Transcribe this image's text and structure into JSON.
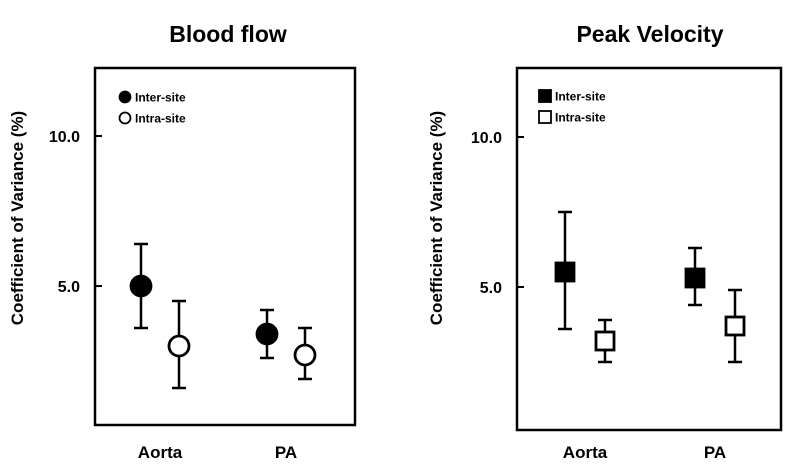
{
  "chart_data": [
    {
      "type": "scatter",
      "title": "Blood flow",
      "ylabel": "Coefficient of Variance (%)",
      "xlabel": "",
      "categories": [
        "Aorta",
        "PA"
      ],
      "yticks": [
        "5.0",
        "10.0"
      ],
      "ylim": [
        0,
        12.5
      ],
      "marker": "circle",
      "legend_position": "top-left",
      "series": [
        {
          "name": "Inter-site",
          "filled": true,
          "values": [
            5.0,
            3.4
          ],
          "err_low": [
            3.6,
            2.6
          ],
          "err_high": [
            6.4,
            4.2
          ]
        },
        {
          "name": "Intra-site",
          "filled": false,
          "values": [
            3.0,
            2.7
          ],
          "err_low": [
            1.6,
            1.9
          ],
          "err_high": [
            4.5,
            3.6
          ]
        }
      ]
    },
    {
      "type": "scatter",
      "title": "Peak Velocity",
      "ylabel": "Coefficient of Variance (%)",
      "xlabel": "",
      "categories": [
        "Aorta",
        "PA"
      ],
      "yticks": [
        "5.0",
        "10.0"
      ],
      "ylim": [
        0,
        12.5
      ],
      "marker": "square",
      "legend_position": "top-left",
      "series": [
        {
          "name": "Inter-site",
          "filled": true,
          "values": [
            5.5,
            5.3
          ],
          "err_low": [
            3.6,
            4.4
          ],
          "err_high": [
            7.5,
            6.3
          ]
        },
        {
          "name": "Intra-site",
          "filled": false,
          "values": [
            3.2,
            3.7
          ],
          "err_low": [
            2.5,
            2.5
          ],
          "err_high": [
            3.9,
            4.9
          ]
        }
      ]
    }
  ]
}
